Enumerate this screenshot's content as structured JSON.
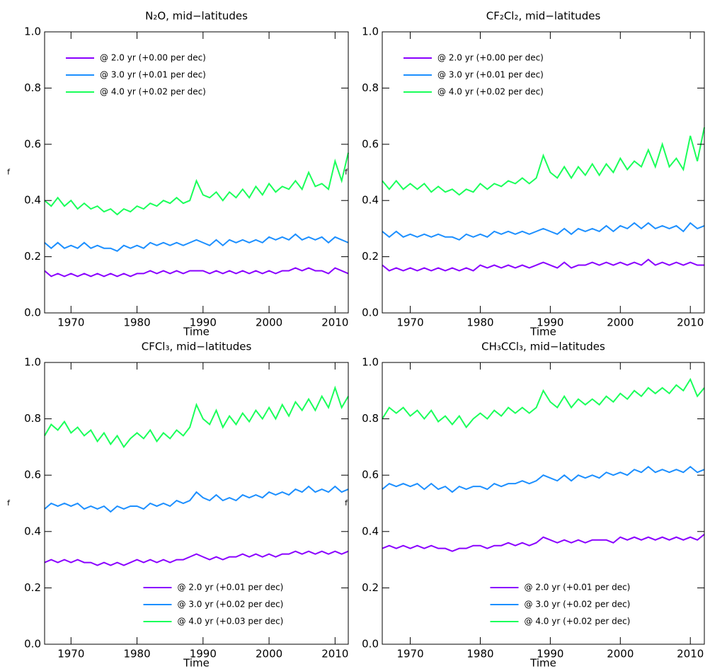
{
  "chart_data": [
    {
      "type": "line",
      "title": "N₂O, mid−latitudes",
      "x_label": "Time",
      "y_label": "f",
      "legend_position": "upper left",
      "x": [
        1966,
        1967,
        1968,
        1969,
        1970,
        1971,
        1972,
        1973,
        1974,
        1975,
        1976,
        1977,
        1978,
        1979,
        1980,
        1981,
        1982,
        1983,
        1984,
        1985,
        1986,
        1987,
        1988,
        1989,
        1990,
        1991,
        1992,
        1993,
        1994,
        1995,
        1996,
        1997,
        1998,
        1999,
        2000,
        2001,
        2002,
        2003,
        2004,
        2005,
        2006,
        2007,
        2008,
        2009,
        2010,
        2011,
        2012
      ],
      "xlim": [
        1966,
        2012
      ],
      "xticks": [
        1970,
        1980,
        1990,
        2000,
        2010
      ],
      "ylim": [
        0,
        1
      ],
      "yticks": [
        {
          "value": 0,
          "label": "0.0"
        },
        0.2,
        0.4,
        0.6,
        0.8,
        {
          "value": 1,
          "label": "1.0"
        }
      ],
      "series": [
        {
          "name": "@ 2.0 yr (+0.00 per dec)",
          "color": "#8a00ff",
          "values": [
            0.15,
            0.13,
            0.14,
            0.13,
            0.14,
            0.13,
            0.14,
            0.13,
            0.14,
            0.13,
            0.14,
            0.13,
            0.14,
            0.13,
            0.14,
            0.14,
            0.15,
            0.14,
            0.15,
            0.14,
            0.15,
            0.14,
            0.15,
            0.15,
            0.15,
            0.14,
            0.15,
            0.14,
            0.15,
            0.14,
            0.15,
            0.14,
            0.15,
            0.14,
            0.15,
            0.14,
            0.15,
            0.15,
            0.16,
            0.15,
            0.16,
            0.15,
            0.15,
            0.14,
            0.16,
            0.15,
            0.14
          ]
        },
        {
          "name": "@ 3.0 yr (+0.01 per dec)",
          "color": "#1c8fff",
          "values": [
            0.25,
            0.23,
            0.25,
            0.23,
            0.24,
            0.23,
            0.25,
            0.23,
            0.24,
            0.23,
            0.23,
            0.22,
            0.24,
            0.23,
            0.24,
            0.23,
            0.25,
            0.24,
            0.25,
            0.24,
            0.25,
            0.24,
            0.25,
            0.26,
            0.25,
            0.24,
            0.26,
            0.24,
            0.26,
            0.25,
            0.26,
            0.25,
            0.26,
            0.25,
            0.27,
            0.26,
            0.27,
            0.26,
            0.28,
            0.26,
            0.27,
            0.26,
            0.27,
            0.25,
            0.27,
            0.26,
            0.25
          ]
        },
        {
          "name": "@ 4.0 yr (+0.02 per dec)",
          "color": "#1aff5a",
          "values": [
            0.4,
            0.38,
            0.41,
            0.38,
            0.4,
            0.37,
            0.39,
            0.37,
            0.38,
            0.36,
            0.37,
            0.35,
            0.37,
            0.36,
            0.38,
            0.37,
            0.39,
            0.38,
            0.4,
            0.39,
            0.41,
            0.39,
            0.4,
            0.47,
            0.42,
            0.41,
            0.43,
            0.4,
            0.43,
            0.41,
            0.44,
            0.41,
            0.45,
            0.42,
            0.46,
            0.43,
            0.45,
            0.44,
            0.47,
            0.44,
            0.5,
            0.45,
            0.46,
            0.44,
            0.54,
            0.47,
            0.57
          ]
        }
      ]
    },
    {
      "type": "line",
      "title": "CF₂Cl₂, mid−latitudes",
      "x_label": "Time",
      "y_label": "f",
      "legend_position": "upper left",
      "x": [
        1966,
        1967,
        1968,
        1969,
        1970,
        1971,
        1972,
        1973,
        1974,
        1975,
        1976,
        1977,
        1978,
        1979,
        1980,
        1981,
        1982,
        1983,
        1984,
        1985,
        1986,
        1987,
        1988,
        1989,
        1990,
        1991,
        1992,
        1993,
        1994,
        1995,
        1996,
        1997,
        1998,
        1999,
        2000,
        2001,
        2002,
        2003,
        2004,
        2005,
        2006,
        2007,
        2008,
        2009,
        2010,
        2011,
        2012
      ],
      "xlim": [
        1966,
        2012
      ],
      "xticks": [
        1970,
        1980,
        1990,
        2000,
        2010
      ],
      "ylim": [
        0,
        1
      ],
      "yticks": [
        {
          "value": 0,
          "label": "0.0"
        },
        0.2,
        0.4,
        0.6,
        0.8,
        {
          "value": 1,
          "label": "1.0"
        }
      ],
      "series": [
        {
          "name": "@ 2.0 yr (+0.00 per dec)",
          "color": "#8a00ff",
          "values": [
            0.17,
            0.15,
            0.16,
            0.15,
            0.16,
            0.15,
            0.16,
            0.15,
            0.16,
            0.15,
            0.16,
            0.15,
            0.16,
            0.15,
            0.17,
            0.16,
            0.17,
            0.16,
            0.17,
            0.16,
            0.17,
            0.16,
            0.17,
            0.18,
            0.17,
            0.16,
            0.18,
            0.16,
            0.17,
            0.17,
            0.18,
            0.17,
            0.18,
            0.17,
            0.18,
            0.17,
            0.18,
            0.17,
            0.19,
            0.17,
            0.18,
            0.17,
            0.18,
            0.17,
            0.18,
            0.17,
            0.17
          ]
        },
        {
          "name": "@ 3.0 yr (+0.01 per dec)",
          "color": "#1c8fff",
          "values": [
            0.29,
            0.27,
            0.29,
            0.27,
            0.28,
            0.27,
            0.28,
            0.27,
            0.28,
            0.27,
            0.27,
            0.26,
            0.28,
            0.27,
            0.28,
            0.27,
            0.29,
            0.28,
            0.29,
            0.28,
            0.29,
            0.28,
            0.29,
            0.3,
            0.29,
            0.28,
            0.3,
            0.28,
            0.3,
            0.29,
            0.3,
            0.29,
            0.31,
            0.29,
            0.31,
            0.3,
            0.32,
            0.3,
            0.32,
            0.3,
            0.31,
            0.3,
            0.31,
            0.29,
            0.32,
            0.3,
            0.31
          ]
        },
        {
          "name": "@ 4.0 yr (+0.02 per dec)",
          "color": "#1aff5a",
          "values": [
            0.47,
            0.44,
            0.47,
            0.44,
            0.46,
            0.44,
            0.46,
            0.43,
            0.45,
            0.43,
            0.44,
            0.42,
            0.44,
            0.43,
            0.46,
            0.44,
            0.46,
            0.45,
            0.47,
            0.46,
            0.48,
            0.46,
            0.48,
            0.56,
            0.5,
            0.48,
            0.52,
            0.48,
            0.52,
            0.49,
            0.53,
            0.49,
            0.53,
            0.5,
            0.55,
            0.51,
            0.54,
            0.52,
            0.58,
            0.52,
            0.6,
            0.52,
            0.55,
            0.51,
            0.63,
            0.54,
            0.66
          ]
        }
      ]
    },
    {
      "type": "line",
      "title": "CFCl₃, mid−latitudes",
      "x_label": "Time",
      "y_label": "f",
      "legend_position": "lower center",
      "x": [
        1966,
        1967,
        1968,
        1969,
        1970,
        1971,
        1972,
        1973,
        1974,
        1975,
        1976,
        1977,
        1978,
        1979,
        1980,
        1981,
        1982,
        1983,
        1984,
        1985,
        1986,
        1987,
        1988,
        1989,
        1990,
        1991,
        1992,
        1993,
        1994,
        1995,
        1996,
        1997,
        1998,
        1999,
        2000,
        2001,
        2002,
        2003,
        2004,
        2005,
        2006,
        2007,
        2008,
        2009,
        2010,
        2011,
        2012
      ],
      "xlim": [
        1966,
        2012
      ],
      "xticks": [
        1970,
        1980,
        1990,
        2000,
        2010
      ],
      "ylim": [
        0,
        1
      ],
      "yticks": [
        {
          "value": 0,
          "label": "0.0"
        },
        0.2,
        0.4,
        0.6,
        0.8,
        {
          "value": 1,
          "label": "1.0"
        }
      ],
      "series": [
        {
          "name": "@ 2.0 yr (+0.01 per dec)",
          "color": "#8a00ff",
          "values": [
            0.29,
            0.3,
            0.29,
            0.3,
            0.29,
            0.3,
            0.29,
            0.29,
            0.28,
            0.29,
            0.28,
            0.29,
            0.28,
            0.29,
            0.3,
            0.29,
            0.3,
            0.29,
            0.3,
            0.29,
            0.3,
            0.3,
            0.31,
            0.32,
            0.31,
            0.3,
            0.31,
            0.3,
            0.31,
            0.31,
            0.32,
            0.31,
            0.32,
            0.31,
            0.32,
            0.31,
            0.32,
            0.32,
            0.33,
            0.32,
            0.33,
            0.32,
            0.33,
            0.32,
            0.33,
            0.32,
            0.33
          ]
        },
        {
          "name": "@ 3.0 yr (+0.02 per dec)",
          "color": "#1c8fff",
          "values": [
            0.48,
            0.5,
            0.49,
            0.5,
            0.49,
            0.5,
            0.48,
            0.49,
            0.48,
            0.49,
            0.47,
            0.49,
            0.48,
            0.49,
            0.49,
            0.48,
            0.5,
            0.49,
            0.5,
            0.49,
            0.51,
            0.5,
            0.51,
            0.54,
            0.52,
            0.51,
            0.53,
            0.51,
            0.52,
            0.51,
            0.53,
            0.52,
            0.53,
            0.52,
            0.54,
            0.53,
            0.54,
            0.53,
            0.55,
            0.54,
            0.56,
            0.54,
            0.55,
            0.54,
            0.56,
            0.54,
            0.55
          ]
        },
        {
          "name": "@ 4.0 yr (+0.03 per dec)",
          "color": "#1aff5a",
          "values": [
            0.74,
            0.78,
            0.76,
            0.79,
            0.75,
            0.77,
            0.74,
            0.76,
            0.72,
            0.75,
            0.71,
            0.74,
            0.7,
            0.73,
            0.75,
            0.73,
            0.76,
            0.72,
            0.75,
            0.73,
            0.76,
            0.74,
            0.77,
            0.85,
            0.8,
            0.78,
            0.83,
            0.77,
            0.81,
            0.78,
            0.82,
            0.79,
            0.83,
            0.8,
            0.84,
            0.8,
            0.85,
            0.81,
            0.86,
            0.83,
            0.87,
            0.83,
            0.88,
            0.84,
            0.91,
            0.84,
            0.88
          ]
        }
      ]
    },
    {
      "type": "line",
      "title": "CH₃CCl₃, mid−latitudes",
      "x_label": "Time",
      "y_label": "f",
      "legend_position": "lower center",
      "x": [
        1966,
        1967,
        1968,
        1969,
        1970,
        1971,
        1972,
        1973,
        1974,
        1975,
        1976,
        1977,
        1978,
        1979,
        1980,
        1981,
        1982,
        1983,
        1984,
        1985,
        1986,
        1987,
        1988,
        1989,
        1990,
        1991,
        1992,
        1993,
        1994,
        1995,
        1996,
        1997,
        1998,
        1999,
        2000,
        2001,
        2002,
        2003,
        2004,
        2005,
        2006,
        2007,
        2008,
        2009,
        2010,
        2011,
        2012
      ],
      "xlim": [
        1966,
        2012
      ],
      "xticks": [
        1970,
        1980,
        1990,
        2000,
        2010
      ],
      "ylim": [
        0,
        1
      ],
      "yticks": [
        {
          "value": 0,
          "label": "0.0"
        },
        0.2,
        0.4,
        0.6,
        0.8,
        {
          "value": 1,
          "label": "1.0"
        }
      ],
      "series": [
        {
          "name": "@ 2.0 yr (+0.01 per dec)",
          "color": "#8a00ff",
          "values": [
            0.34,
            0.35,
            0.34,
            0.35,
            0.34,
            0.35,
            0.34,
            0.35,
            0.34,
            0.34,
            0.33,
            0.34,
            0.34,
            0.35,
            0.35,
            0.34,
            0.35,
            0.35,
            0.36,
            0.35,
            0.36,
            0.35,
            0.36,
            0.38,
            0.37,
            0.36,
            0.37,
            0.36,
            0.37,
            0.36,
            0.37,
            0.37,
            0.37,
            0.36,
            0.38,
            0.37,
            0.38,
            0.37,
            0.38,
            0.37,
            0.38,
            0.37,
            0.38,
            0.37,
            0.38,
            0.37,
            0.39
          ]
        },
        {
          "name": "@ 3.0 yr (+0.02 per dec)",
          "color": "#1c8fff",
          "values": [
            0.55,
            0.57,
            0.56,
            0.57,
            0.56,
            0.57,
            0.55,
            0.57,
            0.55,
            0.56,
            0.54,
            0.56,
            0.55,
            0.56,
            0.56,
            0.55,
            0.57,
            0.56,
            0.57,
            0.57,
            0.58,
            0.57,
            0.58,
            0.6,
            0.59,
            0.58,
            0.6,
            0.58,
            0.6,
            0.59,
            0.6,
            0.59,
            0.61,
            0.6,
            0.61,
            0.6,
            0.62,
            0.61,
            0.63,
            0.61,
            0.62,
            0.61,
            0.62,
            0.61,
            0.63,
            0.61,
            0.62
          ]
        },
        {
          "name": "@ 4.0 yr (+0.02 per dec)",
          "color": "#1aff5a",
          "values": [
            0.8,
            0.84,
            0.82,
            0.84,
            0.81,
            0.83,
            0.8,
            0.83,
            0.79,
            0.81,
            0.78,
            0.81,
            0.77,
            0.8,
            0.82,
            0.8,
            0.83,
            0.81,
            0.84,
            0.82,
            0.84,
            0.82,
            0.84,
            0.9,
            0.86,
            0.84,
            0.88,
            0.84,
            0.87,
            0.85,
            0.87,
            0.85,
            0.88,
            0.86,
            0.89,
            0.87,
            0.9,
            0.88,
            0.91,
            0.89,
            0.91,
            0.89,
            0.92,
            0.9,
            0.94,
            0.88,
            0.91
          ]
        }
      ]
    }
  ]
}
